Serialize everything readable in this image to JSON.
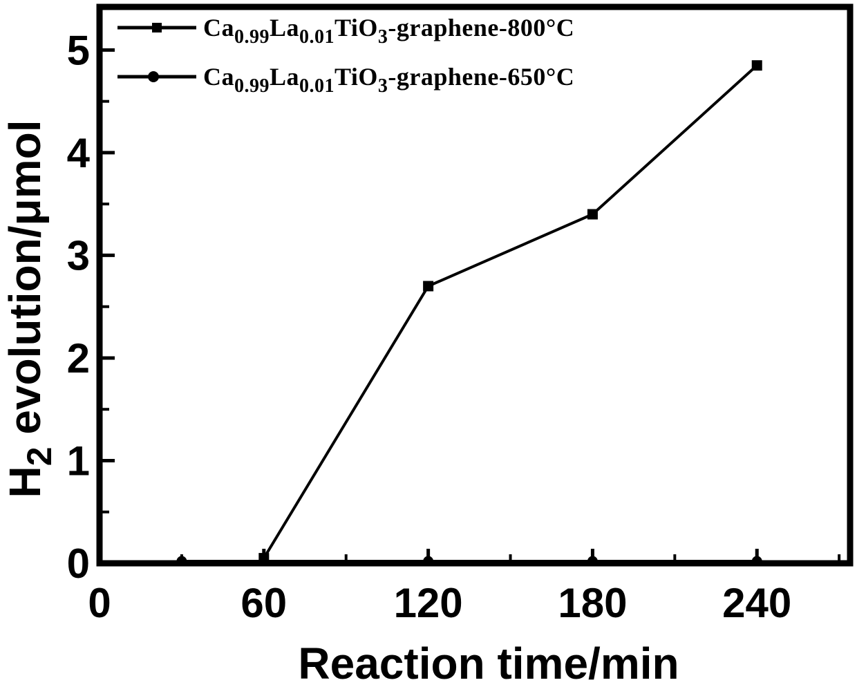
{
  "figure": {
    "background_color": "#ffffff",
    "ink_color": "#000000"
  },
  "chart_data": {
    "type": "line",
    "title": "",
    "xlabel": "Reaction time/min",
    "ylabel": "H2 evolution/μmol",
    "ylabel_parts": [
      {
        "t": "H"
      },
      {
        "t": "2",
        "sub": true
      },
      {
        "t": " evolution/μmol"
      }
    ],
    "xlim": [
      0,
      274
    ],
    "ylim": [
      0,
      5.42
    ],
    "x_major_ticks": [
      0,
      60,
      120,
      180,
      240
    ],
    "x_minor_ticks": [
      30,
      90,
      150,
      210,
      270
    ],
    "y_major_ticks": [
      0,
      1,
      2,
      3,
      4,
      5
    ],
    "y_minor_ticks": [
      0.5,
      1.5,
      2.5,
      3.5,
      4.5
    ],
    "grid": false,
    "legend_position": "top-left",
    "series": [
      {
        "name": "Ca0.99La0.01TiO3-graphene-800°C",
        "name_parts": [
          {
            "t": "Ca"
          },
          {
            "t": "0.99",
            "sub": true
          },
          {
            "t": "La"
          },
          {
            "t": "0.01",
            "sub": true
          },
          {
            "t": "TiO"
          },
          {
            "t": "3",
            "sub": true
          },
          {
            "t": "-graphene-800°C"
          }
        ],
        "marker": "square",
        "color": "#000000",
        "x": [
          60,
          120,
          180,
          240
        ],
        "y": [
          0.05,
          2.7,
          3.4,
          4.85
        ]
      },
      {
        "name": "Ca0.99La0.01TiO3-graphene-650°C",
        "name_parts": [
          {
            "t": "Ca"
          },
          {
            "t": "0.99",
            "sub": true
          },
          {
            "t": "La"
          },
          {
            "t": "0.01",
            "sub": true
          },
          {
            "t": "TiO"
          },
          {
            "t": "3",
            "sub": true
          },
          {
            "t": "-graphene-650°C"
          }
        ],
        "marker": "circle",
        "color": "#000000",
        "x": [
          30,
          60,
          120,
          180,
          240
        ],
        "y": [
          0.02,
          0.02,
          0.02,
          0.02,
          0.02
        ]
      }
    ]
  }
}
